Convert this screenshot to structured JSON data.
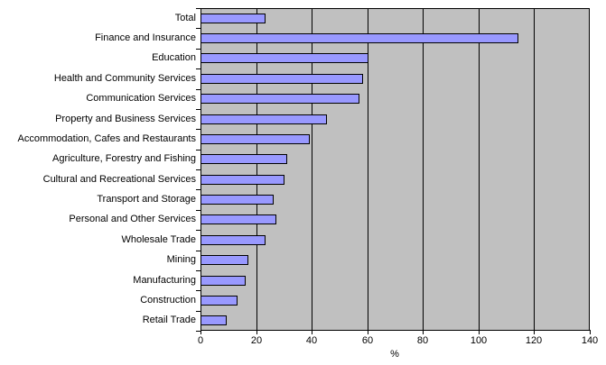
{
  "chart_data": {
    "type": "bar",
    "orientation": "horizontal",
    "title": "",
    "xlabel": "%",
    "ylabel": "",
    "categories": [
      "Total",
      "Finance and Insurance",
      "Education",
      "Health and Community Services",
      "Communication Services",
      "Property and Business Services",
      "Accommodation, Cafes and Restaurants",
      "Agriculture, Forestry and Fishing",
      "Cultural and Recreational Services",
      "Transport and Storage",
      "Personal and Other Services",
      "Wholesale Trade",
      "Mining",
      "Manufacturing",
      "Construction",
      "Retail Trade"
    ],
    "values": [
      23,
      114,
      60,
      58,
      57,
      45,
      39,
      31,
      30,
      26,
      27,
      23,
      17,
      16,
      13,
      9
    ],
    "xlim": [
      0,
      140
    ],
    "xticks": [
      0,
      20,
      40,
      60,
      80,
      100,
      120,
      140
    ],
    "grid": true,
    "legend": false,
    "colors": {
      "bar_fill": "#9999FF",
      "bar_border": "#000000",
      "plot_bg": "#C0C0C0",
      "gridline": "#000000",
      "text": "#000000",
      "outer_bg": "#FFFFFF"
    }
  }
}
